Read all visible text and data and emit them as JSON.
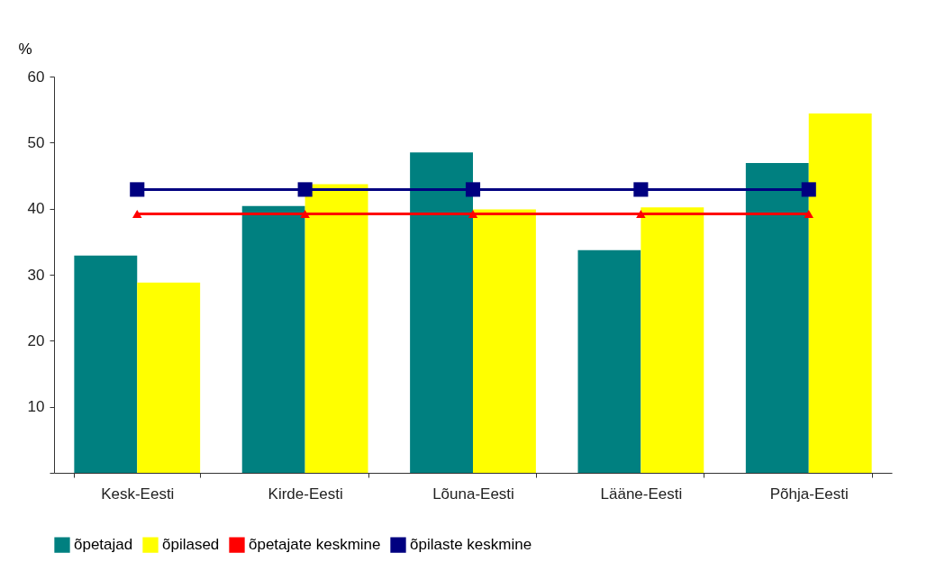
{
  "chart_data": {
    "type": "bar",
    "ylabel": "%",
    "categories": [
      "Kesk-Eesti",
      "Kirde-Eesti",
      "Lõuna-Eesti",
      "Lääne-Eesti",
      "Põhja-Eesti"
    ],
    "series": [
      {
        "name": "õpetajad",
        "color": "#008080",
        "values": [
          32.9,
          40.4,
          48.5,
          33.7,
          46.9
        ]
      },
      {
        "name": "õpilased",
        "color": "#ffff00",
        "values": [
          28.8,
          43.7,
          39.9,
          40.2,
          54.4
        ]
      },
      {
        "name": "õpetajate keskmine",
        "type": "line",
        "color": "#ff0000",
        "marker": "triangle",
        "values": [
          39.2,
          39.2,
          39.2,
          39.2,
          39.2
        ]
      },
      {
        "name": "õpilaste keskmine",
        "type": "line",
        "color": "#000080",
        "marker": "square",
        "values": [
          42.9,
          42.9,
          42.9,
          42.9,
          42.9
        ]
      }
    ],
    "ylim": [
      0,
      60
    ],
    "yticks": [
      {
        "value": 0,
        "label": null
      },
      10,
      20,
      30,
      40,
      50,
      60
    ],
    "grid": false,
    "legend": "bottom"
  }
}
